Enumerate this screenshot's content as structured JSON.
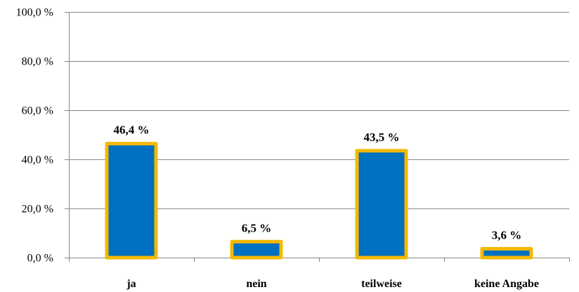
{
  "chart_data": {
    "type": "bar",
    "categories": [
      "ja",
      "nein",
      "teilweise",
      "keine Angabe"
    ],
    "values": [
      46.4,
      6.5,
      43.5,
      3.6
    ],
    "data_labels": [
      "46,4 %",
      "6,5 %",
      "43,5 %",
      "3,6 %"
    ],
    "y_ticks": [
      0,
      20,
      40,
      60,
      80,
      100
    ],
    "y_tick_labels": [
      "0,0 %",
      "20,0 %",
      "40,0 %",
      "60,0 %",
      "80,0 %",
      "100,0 %"
    ],
    "ylim": [
      0,
      100
    ],
    "title": "",
    "xlabel": "",
    "ylabel": "",
    "grid": true,
    "legend": "none",
    "colors": {
      "bar_fill": "#0070c0",
      "bar_border": "#f5b800",
      "grid": "#868686",
      "axis": "#868686",
      "text": "#000000"
    }
  }
}
